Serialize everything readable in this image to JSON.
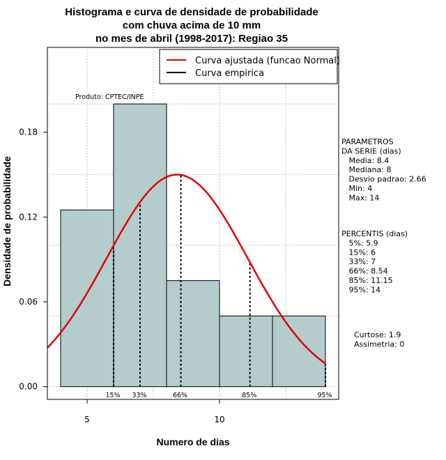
{
  "chart_data": {
    "type": "bar",
    "title_lines": [
      "Histograma e curva de densidade de probabilidade",
      "com chuva acima de 10 mm",
      "no mes de abril (1998-2017): Regiao 35"
    ],
    "xlabel": "Numero de dias",
    "ylabel": "Densidade de probabilidade",
    "xlim": [
      3.5,
      14.5
    ],
    "ylim": [
      -0.009,
      0.24
    ],
    "x_ticks": [
      5,
      10
    ],
    "y_ticks": [
      0.0,
      0.06,
      0.12,
      0.18
    ],
    "y_tick_labels": [
      "0.00",
      "0.06",
      "0.12",
      "0.18"
    ],
    "grid": true,
    "bar_color": "#b4cccc",
    "curve_color": "#e00000",
    "bins": [
      {
        "from": 4,
        "to": 6,
        "density": 0.125
      },
      {
        "from": 6,
        "to": 8,
        "density": 0.2
      },
      {
        "from": 8,
        "to": 10,
        "density": 0.075
      },
      {
        "from": 10,
        "to": 12,
        "density": 0.05
      },
      {
        "from": 12,
        "to": 14,
        "density": 0.05
      }
    ],
    "fit": {
      "distribution": "normal",
      "mean": 8.4,
      "sd": 2.66
    },
    "percentile_lines": [
      {
        "label": "15%",
        "x": 6
      },
      {
        "label": "33%",
        "x": 7
      },
      {
        "label": "66%",
        "x": 8.54
      },
      {
        "label": "85%",
        "x": 11.15
      },
      {
        "label": "95%",
        "x": 14
      }
    ],
    "product_label": "Produto: CPTEC/INPE",
    "legend": {
      "position": "top-right",
      "entries": [
        {
          "label": "Curva ajustada (funcao Normal)",
          "color": "#e00000"
        },
        {
          "label": "Curva empirica",
          "color": "#000000"
        }
      ]
    },
    "side_panel": {
      "params_lines": [
        "PARAMETROS",
        "DA SERIE (dias)",
        "   Media: 8.4",
        "   Mediana: 8",
        "   Desvio padrao: 2.66",
        "   Min: 4",
        "   Max: 14"
      ],
      "percentis_lines": [
        "PERCENTIS (dias)",
        "   5%: 5.9",
        "   15%: 6",
        "   33%: 7",
        "   66%: 8.54",
        "   85%: 11.15",
        "   95%: 14"
      ],
      "stats_lines": [
        "Curtose: 1.9",
        "Assimetria: 0"
      ]
    }
  }
}
